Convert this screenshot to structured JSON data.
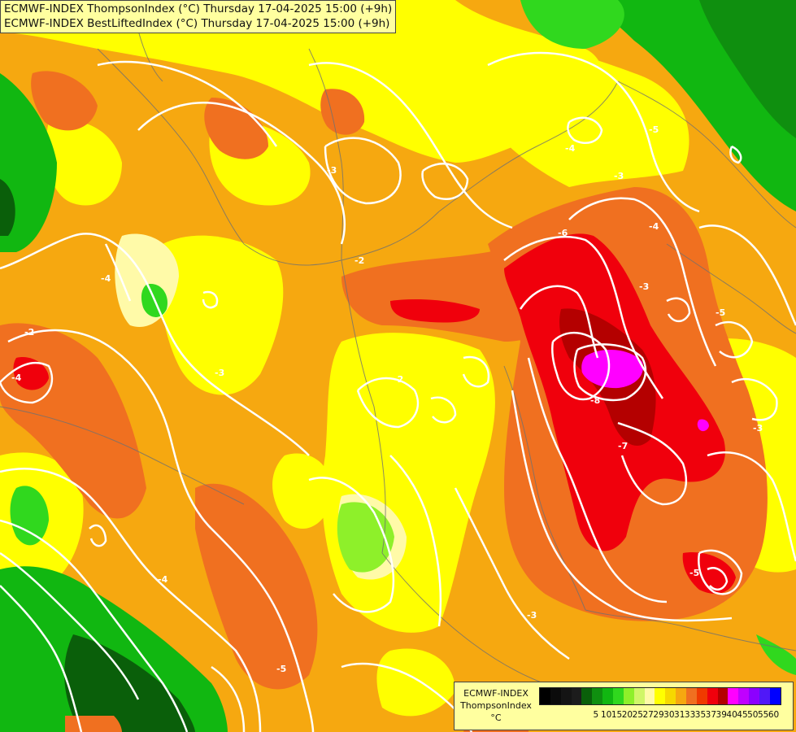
{
  "header": {
    "line1": "ECMWF-INDEX ThompsonIndex (°C) Thursday 17-04-2025 15:00 (+9h)",
    "line2": "ECMWF-INDEX BestLiftedIndex (°C) Thursday 17-04-2025 15:00 (+9h)"
  },
  "legend": {
    "line1": "ECMWF-INDEX",
    "line2": "ThompsonIndex",
    "unit": "°C",
    "colors": [
      "#000000",
      "#0b0b0b",
      "#141414",
      "#1c1c1c",
      "#0a5f0a",
      "#0f8f0f",
      "#11b711",
      "#30d81e",
      "#8ef02a",
      "#d0f668",
      "#fffaa8",
      "#ffff00",
      "#f6d800",
      "#f6a810",
      "#f07020",
      "#f03a00",
      "#f0000c",
      "#b40000",
      "#ff00ff",
      "#c000ff",
      "#8c00ff",
      "#5018f8",
      "#0000ff"
    ],
    "labels": [
      "5",
      "10",
      "15",
      "20",
      "25",
      "27",
      "29",
      "30",
      "31",
      "33",
      "35",
      "37",
      "39",
      "40",
      "45",
      "50",
      "55",
      "60"
    ]
  },
  "map": {
    "contour_labels": [
      "-2",
      "-4",
      "-3",
      "-3",
      "-4",
      "-5",
      "-6",
      "-8",
      "-7",
      "-3",
      "-5",
      "-3",
      "-4",
      "-2",
      "-5",
      "-3",
      "-4",
      "-5",
      "-3",
      "-4",
      "-2"
    ]
  }
}
